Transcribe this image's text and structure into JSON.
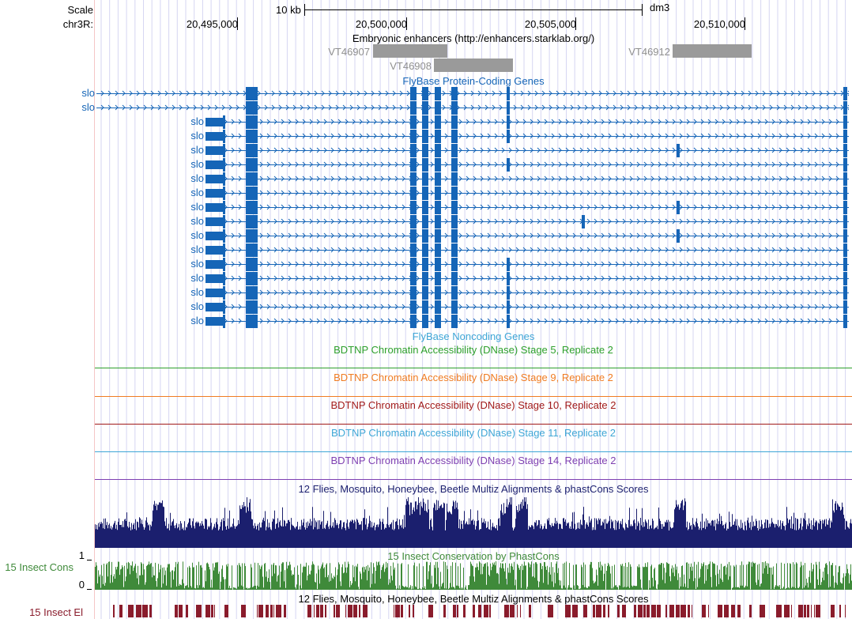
{
  "ruler": {
    "scale_label": "Scale",
    "chrom_label": "chr3R:",
    "scalebar_label": "10 kb",
    "assembly": "dm3",
    "positions": [
      "20,495,000",
      "20,500,000",
      "20,505,000",
      "20,510,000"
    ]
  },
  "tracks": {
    "enhancers": {
      "title": "Embryonic enhancers (http://enhancers.starklab.org/)",
      "items": [
        {
          "name": "VT46907",
          "start": 20499000,
          "end": 20501200
        },
        {
          "name": "VT46908",
          "start": 20500750,
          "end": 20503100
        },
        {
          "name": "VT46912",
          "start": 20508500,
          "end": 20510850
        }
      ]
    },
    "protein_coding": {
      "title": "FlyBase Protein-Coding Genes",
      "gene_name": "slo"
    },
    "noncoding": {
      "title": "FlyBase Noncoding Genes"
    },
    "dnase": [
      {
        "title": "BDTNP Chromatin Accessibility (DNase) Stage 5, Replicate 2",
        "color": "#2ea02c"
      },
      {
        "title": "BDTNP Chromatin Accessibility (DNase) Stage 9, Replicate 2",
        "color": "#f07c22"
      },
      {
        "title": "BDTNP Chromatin Accessibility (DNase) Stage 10, Replicate 2",
        "color": "#a11a1a"
      },
      {
        "title": "BDTNP Chromatin Accessibility (DNase) Stage 11, Replicate 2",
        "color": "#3ea6d6"
      },
      {
        "title": "BDTNP Chromatin Accessibility (DNase) Stage 14, Replicate 2",
        "color": "#7e3fb1"
      }
    ],
    "multiz": {
      "title": "12 Flies, Mosquito, Honeybee, Beetle Multiz Alignments & phastCons Scores",
      "color": "#1b1f6e"
    },
    "insect_cons": {
      "title": "15 Insect Conservation by PhastCons",
      "side_label": "15 Insect Cons",
      "ymax": "1",
      "ymin": "0",
      "color": "#3f8a3a"
    },
    "multiz2": {
      "title": "12 Flies, Mosquito, Honeybee, Beetle Multiz Alignments & phastCons Scores"
    },
    "insect_el": {
      "side_label": "15 Insect El",
      "color": "#8a1c2c"
    }
  },
  "colors": {
    "gene": "#1565b7",
    "enhancer": "#9a9a9a",
    "enhancer_label": "#8f8f8f",
    "gridline": "#d6d6f2"
  }
}
